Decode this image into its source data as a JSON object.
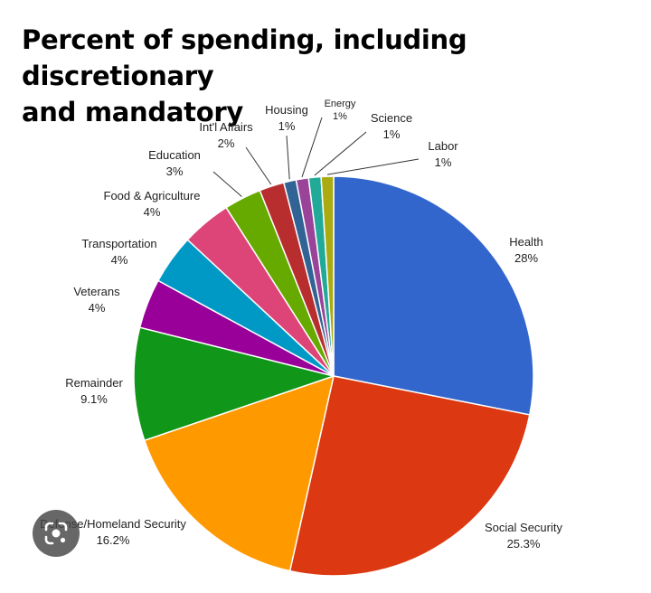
{
  "chart_data": {
    "type": "pie",
    "title_line1": "Percent of spending, including discretionary",
    "title_line2": "and mandatory",
    "slices": [
      {
        "label": "Health",
        "value_text": "28%",
        "value": 28.0,
        "color": "#3366CC"
      },
      {
        "label": "Social Security",
        "value_text": "25.3%",
        "value": 25.3,
        "color": "#DC3912"
      },
      {
        "label": "Defense/Homeland Security",
        "value_text": "16.2%",
        "value": 16.2,
        "color": "#FF9900"
      },
      {
        "label": "Remainder",
        "value_text": "9.1%",
        "value": 9.1,
        "color": "#109618"
      },
      {
        "label": "Veterans",
        "value_text": "4%",
        "value": 4.0,
        "color": "#990099"
      },
      {
        "label": "Transportation",
        "value_text": "4%",
        "value": 4.0,
        "color": "#0099C6"
      },
      {
        "label": "Food & Agriculture",
        "value_text": "4%",
        "value": 4.0,
        "color": "#DD4477"
      },
      {
        "label": "Education",
        "value_text": "3%",
        "value": 3.0,
        "color": "#66AA00"
      },
      {
        "label": "Int'l Affairs",
        "value_text": "2%",
        "value": 2.0,
        "color": "#B82E2E"
      },
      {
        "label": "Housing",
        "value_text": "1%",
        "value": 1.0,
        "color": "#316395"
      },
      {
        "label": "Energy",
        "value_text": "1%",
        "value": 1.0,
        "color": "#994499"
      },
      {
        "label": "Science",
        "value_text": "1%",
        "value": 1.0,
        "color": "#22AA99"
      },
      {
        "label": "Labor",
        "value_text": "1%",
        "value": 1.0,
        "color": "#AAAA11"
      }
    ]
  },
  "overlay": {
    "lens_icon": "google-lens-icon"
  }
}
